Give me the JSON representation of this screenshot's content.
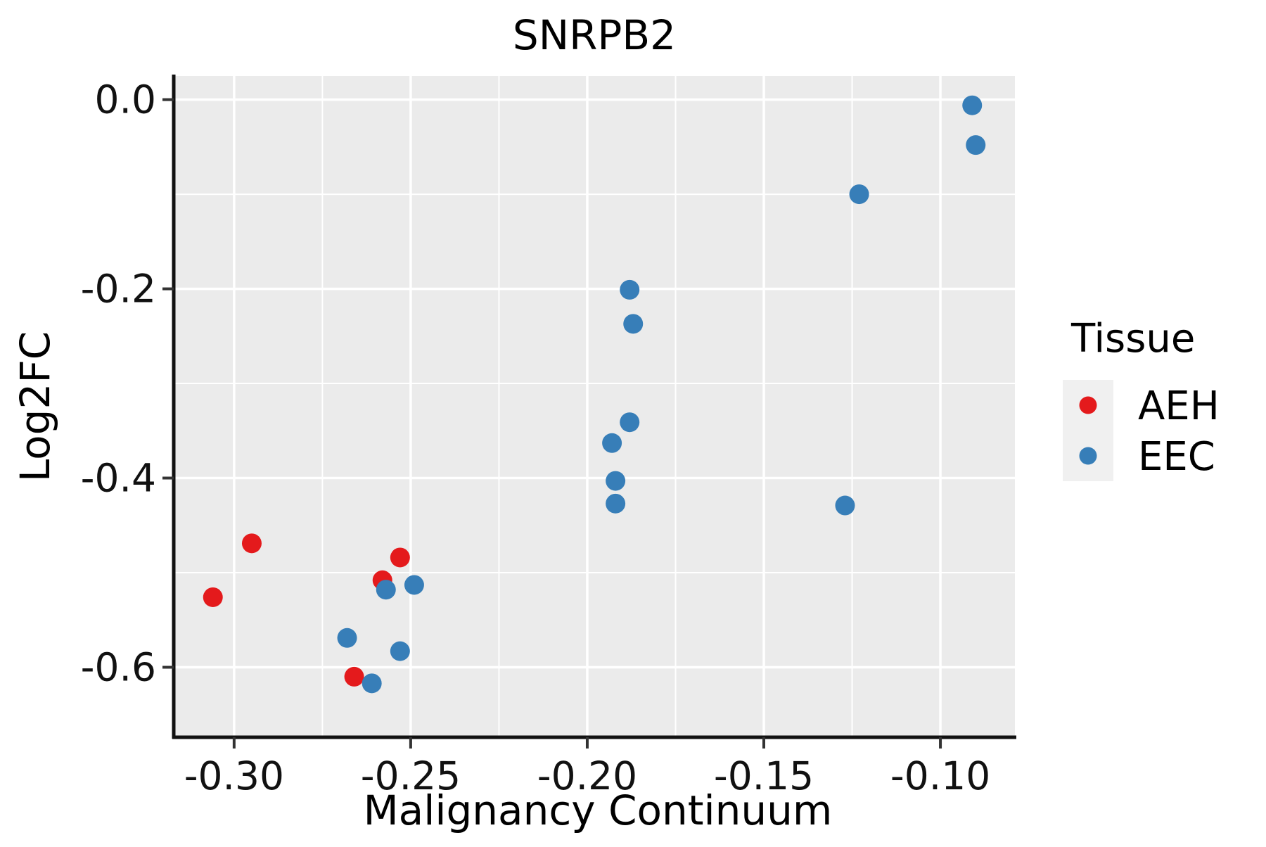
{
  "chart": {
    "title": "SNRPB2",
    "xlabel": "Malignancy Continuum",
    "ylabel": "Log2FC"
  },
  "legend": {
    "title": "Tissue",
    "items": [
      {
        "label": "AEH",
        "color": "#e41a1c"
      },
      {
        "label": "EEC",
        "color": "#377eb8"
      }
    ]
  },
  "style": {
    "panel_bg": "#ebebeb",
    "grid_color": "#ffffff",
    "axis_color": "#111111",
    "tick_color": "#333333",
    "legend_key_bg": "#f0f0f0",
    "point_radius": 14,
    "legend_point_radius": 12.5
  },
  "chart_data": {
    "type": "scatter",
    "title": "SNRPB2",
    "xlabel": "Malignancy Continuum",
    "ylabel": "Log2FC",
    "xlim": [
      -0.3171,
      -0.0789
    ],
    "ylim": [
      -0.674,
      0.025
    ],
    "grid": true,
    "legend_position": "right",
    "x_ticks": [
      {
        "value": -0.3,
        "label": "-0.30"
      },
      {
        "value": -0.25,
        "label": "-0.25"
      },
      {
        "value": -0.2,
        "label": "-0.20"
      },
      {
        "value": -0.15,
        "label": "-0.15"
      },
      {
        "value": -0.1,
        "label": "-0.10"
      }
    ],
    "y_ticks": [
      {
        "value": 0.0,
        "label": "0.0"
      },
      {
        "value": -0.2,
        "label": "-0.2"
      },
      {
        "value": -0.4,
        "label": "-0.4"
      },
      {
        "value": -0.6,
        "label": "-0.6"
      }
    ],
    "x_minor": [
      -0.275,
      -0.225,
      -0.175,
      -0.125
    ],
    "y_minor": [
      -0.1,
      -0.3,
      -0.5
    ],
    "series": [
      {
        "name": "AEH",
        "color": "#e41a1c",
        "points": [
          [
            -0.306,
            -0.526
          ],
          [
            -0.295,
            -0.469
          ],
          [
            -0.266,
            -0.61
          ],
          [
            -0.258,
            -0.508
          ],
          [
            -0.253,
            -0.484
          ]
        ]
      },
      {
        "name": "EEC",
        "color": "#377eb8",
        "points": [
          [
            -0.268,
            -0.569
          ],
          [
            -0.261,
            -0.617
          ],
          [
            -0.257,
            -0.518
          ],
          [
            -0.253,
            -0.583
          ],
          [
            -0.249,
            -0.513
          ],
          [
            -0.193,
            -0.363
          ],
          [
            -0.192,
            -0.403
          ],
          [
            -0.192,
            -0.427
          ],
          [
            -0.188,
            -0.201
          ],
          [
            -0.188,
            -0.341
          ],
          [
            -0.187,
            -0.237
          ],
          [
            -0.127,
            -0.429
          ],
          [
            -0.123,
            -0.1
          ],
          [
            -0.091,
            -0.006
          ],
          [
            -0.09,
            -0.048
          ]
        ]
      }
    ]
  }
}
